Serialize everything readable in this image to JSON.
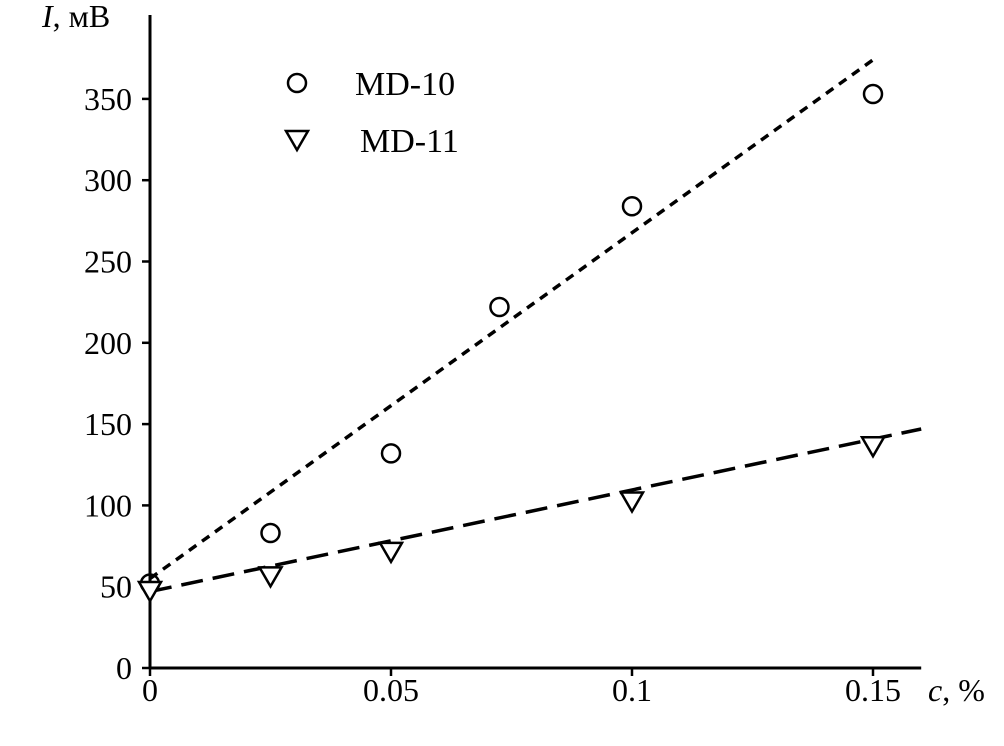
{
  "chart_data": {
    "type": "scatter",
    "title": "",
    "xlabel": "c, %",
    "ylabel_italic": "I",
    "ylabel_unit": ", мВ",
    "xlabel_italic": "c",
    "xlabel_unit": ", %",
    "xlim": [
      0,
      0.16
    ],
    "ylim": [
      0,
      400
    ],
    "x_ticks": [
      0,
      0.05,
      0.1,
      0.15
    ],
    "x_tick_labels": [
      "0",
      "0.05",
      "0.1",
      "0.15"
    ],
    "y_ticks": [
      0,
      50,
      100,
      150,
      200,
      250,
      300,
      350
    ],
    "y_tick_labels": [
      "0",
      "50",
      "100",
      "150",
      "200",
      "250",
      "300",
      "350"
    ],
    "grid": false,
    "legend_position": "top-left",
    "series": [
      {
        "name": "MD-10",
        "marker": "circle",
        "x": [
          0,
          0.025,
          0.05,
          0.0725,
          0.1,
          0.15
        ],
        "y": [
          52,
          83,
          132,
          222,
          284,
          353
        ],
        "fit": {
          "style": "short-dash",
          "x": [
            0,
            0.15
          ],
          "y": [
            55,
            374
          ]
        }
      },
      {
        "name": "MD-11",
        "marker": "triangle-down",
        "x": [
          0,
          0.025,
          0.05,
          0.1,
          0.15
        ],
        "y": [
          48,
          57,
          72,
          103,
          137
        ],
        "fit": {
          "style": "long-dash",
          "x": [
            0,
            0.16
          ],
          "y": [
            47,
            147
          ]
        }
      }
    ]
  }
}
